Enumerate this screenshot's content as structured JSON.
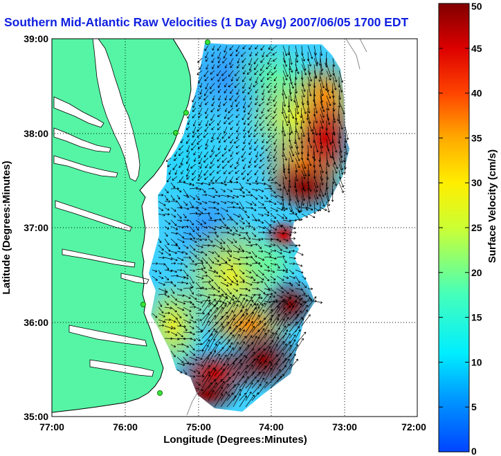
{
  "title": "Southern Mid-Atlantic Raw Velocities (1 Day Avg) 2007/06/05 1700 EDT",
  "map": {
    "x_axis": {
      "label": "Longitude (Degrees:Minutes)",
      "ticks": [
        "77:00",
        "76:00",
        "75:00",
        "74:00",
        "73:00",
        "72:00"
      ],
      "range_deg_west": [
        77,
        72
      ]
    },
    "y_axis": {
      "label": "Latitude (Degrees:Minutes)",
      "ticks": [
        "35:00",
        "36:00",
        "37:00",
        "38:00",
        "39:00"
      ],
      "range_deg_north": [
        35,
        39
      ]
    },
    "grid": "dotted"
  },
  "colorbar": {
    "label": "Surface Velocity (cm/s)",
    "ticks": [
      "0",
      "5",
      "10",
      "15",
      "20",
      "25",
      "30",
      "35",
      "40",
      "45",
      "50"
    ],
    "min": 0,
    "max": 50,
    "colormap": "jet"
  },
  "colors": {
    "land": "#55f5a5",
    "ocean_background": "#ffffff",
    "title": "#1020e0",
    "vectors": "#000000",
    "station": "#39e639"
  }
}
